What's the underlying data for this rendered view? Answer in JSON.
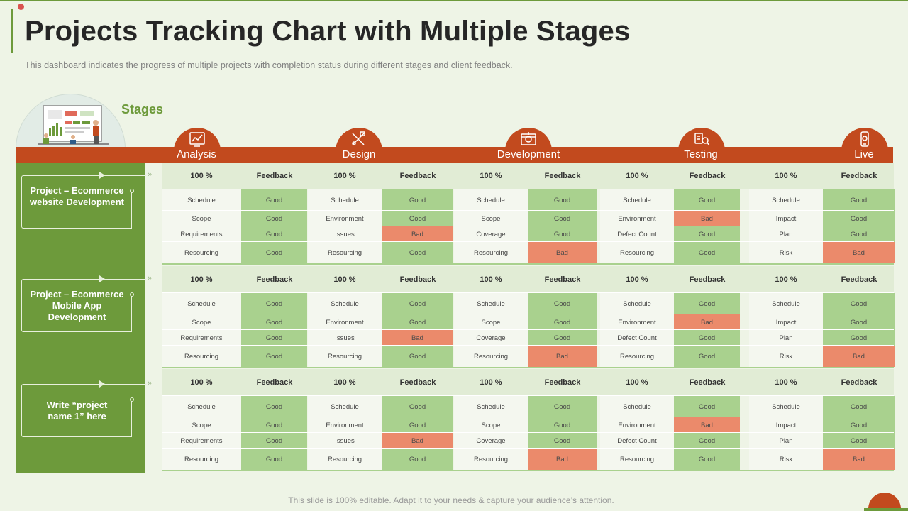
{
  "title": "Projects Tracking Chart with Multiple Stages",
  "subtitle": "This dashboard indicates the progress of multiple projects with completion status during different  stages and client feedback.",
  "stages_label": "Stages",
  "footer": "This slide is 100% editable. Adapt it to your needs & capture your audience’s attention.",
  "icons": [
    "analysis-icon",
    "design-icon",
    "development-icon",
    "testing-icon",
    "live-icon"
  ],
  "colors": {
    "accent_green": "#6d9a3b",
    "accent_orange": "#c24a1e",
    "good": "#a9d18e",
    "bad": "#eb8a6b"
  },
  "stages": [
    {
      "name": "Analysis",
      "percent": "100 %",
      "feedback_label": "Feedback"
    },
    {
      "name": "Design",
      "percent": "100 %",
      "feedback_label": "Feedback"
    },
    {
      "name": "Development",
      "percent": "100 %",
      "feedback_label": "Feedback"
    },
    {
      "name": "Testing",
      "percent": "100 %",
      "feedback_label": "Feedback"
    },
    {
      "name": "Live",
      "percent": "100 %",
      "feedback_label": "Feedback"
    }
  ],
  "projects": [
    {
      "name": "Project – Ecommerce website Development",
      "rows": [
        [
          [
            "Schedule",
            "Good"
          ],
          [
            "Schedule",
            "Good"
          ],
          [
            "Schedule",
            "Good"
          ],
          [
            "Schedule",
            "Good"
          ],
          [
            "Schedule",
            "Good"
          ]
        ],
        [
          [
            "Scope",
            "Good"
          ],
          [
            "Environment",
            "Good"
          ],
          [
            "Scope",
            "Good"
          ],
          [
            "Environment",
            "Bad"
          ],
          [
            "Impact",
            "Good"
          ]
        ],
        [
          [
            "Requirements",
            "Good"
          ],
          [
            "Issues",
            "Bad"
          ],
          [
            "Coverage",
            "Good"
          ],
          [
            "Defect Count",
            "Good"
          ],
          [
            "Plan",
            "Good"
          ]
        ],
        [
          [
            "Resourcing",
            "Good"
          ],
          [
            "Resourcing",
            "Good"
          ],
          [
            "Resourcing",
            "Bad"
          ],
          [
            "Resourcing",
            "Good"
          ],
          [
            "Risk",
            "Bad"
          ]
        ]
      ]
    },
    {
      "name": "Project – Ecommerce Mobile App Development",
      "rows": [
        [
          [
            "Schedule",
            "Good"
          ],
          [
            "Schedule",
            "Good"
          ],
          [
            "Schedule",
            "Good"
          ],
          [
            "Schedule",
            "Good"
          ],
          [
            "Schedule",
            "Good"
          ]
        ],
        [
          [
            "Scope",
            "Good"
          ],
          [
            "Environment",
            "Good"
          ],
          [
            "Scope",
            "Good"
          ],
          [
            "Environment",
            "Bad"
          ],
          [
            "Impact",
            "Good"
          ]
        ],
        [
          [
            "Requirements",
            "Good"
          ],
          [
            "Issues",
            "Bad"
          ],
          [
            "Coverage",
            "Good"
          ],
          [
            "Defect Count",
            "Good"
          ],
          [
            "Plan",
            "Good"
          ]
        ],
        [
          [
            "Resourcing",
            "Good"
          ],
          [
            "Resourcing",
            "Good"
          ],
          [
            "Resourcing",
            "Bad"
          ],
          [
            "Resourcing",
            "Good"
          ],
          [
            "Risk",
            "Bad"
          ]
        ]
      ]
    },
    {
      "name": "Write “project name 1” here",
      "rows": [
        [
          [
            "Schedule",
            "Good"
          ],
          [
            "Schedule",
            "Good"
          ],
          [
            "Schedule",
            "Good"
          ],
          [
            "Schedule",
            "Good"
          ],
          [
            "Schedule",
            "Good"
          ]
        ],
        [
          [
            "Scope",
            "Good"
          ],
          [
            "Environment",
            "Good"
          ],
          [
            "Scope",
            "Good"
          ],
          [
            "Environment",
            "Bad"
          ],
          [
            "Impact",
            "Good"
          ]
        ],
        [
          [
            "Requirements",
            "Good"
          ],
          [
            "Issues",
            "Bad"
          ],
          [
            "Coverage",
            "Good"
          ],
          [
            "Defect Count",
            "Good"
          ],
          [
            "Plan",
            "Good"
          ]
        ],
        [
          [
            "Resourcing",
            "Good"
          ],
          [
            "Resourcing",
            "Good"
          ],
          [
            "Resourcing",
            "Bad"
          ],
          [
            "Resourcing",
            "Good"
          ],
          [
            "Risk",
            "Bad"
          ]
        ]
      ]
    }
  ]
}
